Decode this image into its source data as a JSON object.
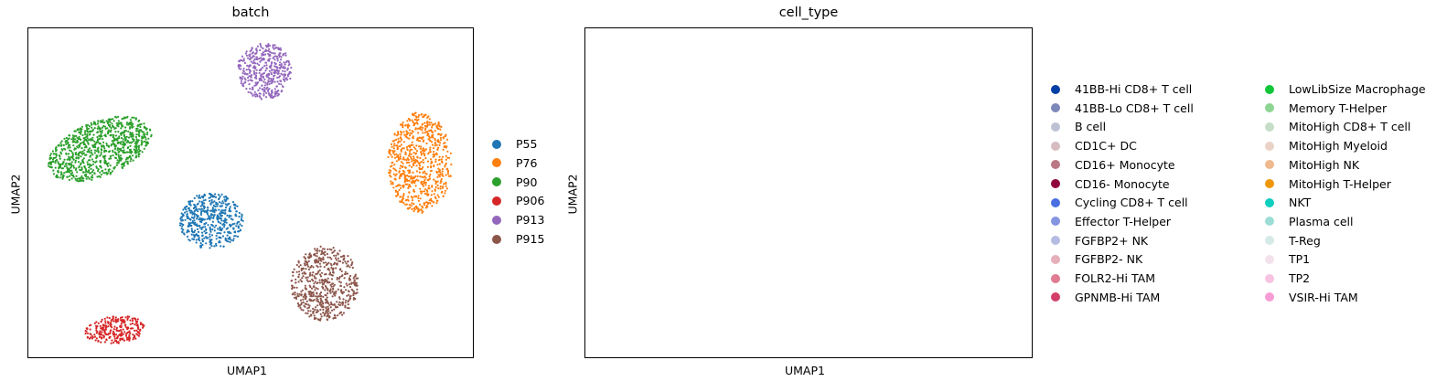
{
  "chart_data": [
    {
      "type": "scatter",
      "title": "batch",
      "xlabel": "UMAP1",
      "ylabel": "UMAP2",
      "grid": false,
      "legend_placement": "right-outside",
      "series": [
        {
          "name": "P55",
          "color": "#1f77b4"
        },
        {
          "name": "P76",
          "color": "#ff7f0e"
        },
        {
          "name": "P90",
          "color": "#2ca02c"
        },
        {
          "name": "P906",
          "color": "#d62728"
        },
        {
          "name": "P913",
          "color": "#9467bd"
        },
        {
          "name": "P915",
          "color": "#8c564b"
        }
      ]
    },
    {
      "type": "scatter",
      "title": "cell_type",
      "xlabel": "UMAP1",
      "ylabel": "UMAP2",
      "grid": false,
      "legend_placement": "right-outside",
      "series": [
        {
          "name": "41BB-Hi CD8+ T cell",
          "color": "#023fa5"
        },
        {
          "name": "41BB-Lo CD8+ T cell",
          "color": "#7d87b9"
        },
        {
          "name": "B cell",
          "color": "#bec1d4"
        },
        {
          "name": "CD1C+ DC",
          "color": "#d6bcc0"
        },
        {
          "name": "CD16+ Monocyte",
          "color": "#bb7784"
        },
        {
          "name": "CD16- Monocyte",
          "color": "#8e063b"
        },
        {
          "name": "Cycling CD8+ T cell",
          "color": "#4a6fe3"
        },
        {
          "name": "Effector T-Helper",
          "color": "#8595e1"
        },
        {
          "name": "FGFBP2+ NK",
          "color": "#b5bbe3"
        },
        {
          "name": "FGFBP2- NK",
          "color": "#e6afb9"
        },
        {
          "name": "FOLR2-Hi TAM",
          "color": "#e07b91"
        },
        {
          "name": "GPNMB-Hi TAM",
          "color": "#d33f6a"
        },
        {
          "name": "LowLibSize Macrophage",
          "color": "#11c638"
        },
        {
          "name": "Memory T-Helper",
          "color": "#8dd593"
        },
        {
          "name": "MitoHigh CD8+ T cell",
          "color": "#c6dec7"
        },
        {
          "name": "MitoHigh Myeloid",
          "color": "#ead3c6"
        },
        {
          "name": "MitoHigh NK",
          "color": "#f0b98d"
        },
        {
          "name": "MitoHigh T-Helper",
          "color": "#ef9708"
        },
        {
          "name": "NKT",
          "color": "#0fcfc0"
        },
        {
          "name": "Plasma cell",
          "color": "#9cded6"
        },
        {
          "name": "T-Reg",
          "color": "#d5eae7"
        },
        {
          "name": "TP1",
          "color": "#f3e1eb"
        },
        {
          "name": "TP2",
          "color": "#f6c4e1"
        },
        {
          "name": "VSIR-Hi TAM",
          "color": "#f79cd4"
        }
      ]
    }
  ]
}
